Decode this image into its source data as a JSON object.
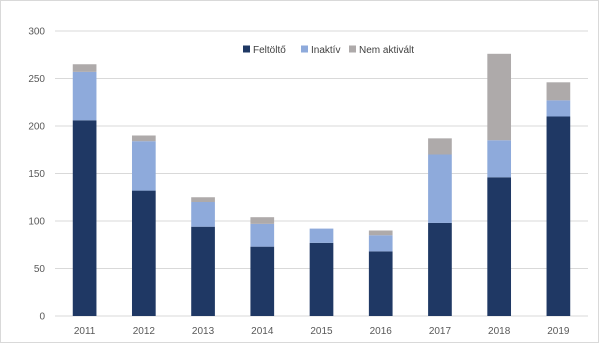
{
  "chart_data": {
    "type": "bar",
    "stacked": true,
    "title": "",
    "xlabel": "",
    "ylabel": "",
    "categories": [
      "2011",
      "2012",
      "2013",
      "2014",
      "2015",
      "2016",
      "2017",
      "2018",
      "2019"
    ],
    "series": [
      {
        "name": "Feltöltő",
        "color": "#1f3864",
        "values": [
          206,
          132,
          94,
          73,
          77,
          68,
          98,
          146,
          210
        ]
      },
      {
        "name": "Inaktív",
        "color": "#8eaadb",
        "values": [
          51,
          52,
          26,
          24,
          15,
          17,
          72,
          39,
          17
        ]
      },
      {
        "name": "Nem aktivált",
        "color": "#aeaaaa",
        "values": [
          8,
          6,
          5,
          7,
          0,
          5,
          17,
          91,
          19
        ]
      }
    ],
    "ylim": [
      0,
      300
    ],
    "yticks": [
      "0",
      "50",
      "100",
      "150",
      "200",
      "250",
      "300"
    ],
    "grid": true,
    "legend_position": "top-center"
  }
}
